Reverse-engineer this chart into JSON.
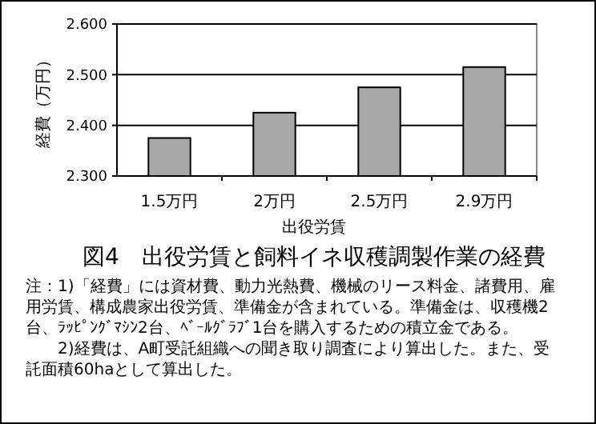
{
  "chart_data": {
    "type": "bar",
    "title": "図4　出役労賃と飼料イネ収穫調製作業の経費",
    "xlabel": "出役労賃",
    "ylabel": "経費（万円）",
    "categories": [
      "1.5万円",
      "2万円",
      "2.5万円",
      "2.9万円"
    ],
    "values": [
      2.375,
      2.425,
      2.475,
      2.515
    ],
    "color": "#a8a8a8",
    "ylim": [
      2.3,
      2.6
    ],
    "yticks": [
      {
        "value": 2.3,
        "label": "2.300"
      },
      {
        "value": 2.4,
        "label": "2.400"
      },
      {
        "value": 2.5,
        "label": "2.500"
      },
      {
        "value": 2.6,
        "label": "2.600"
      }
    ],
    "grid": "y",
    "annotations": [
      "注：1)「経費」には資材費、動力光熱費、機械のリース料金、諸費用、雇用労賃、構成農家出役労賃、準備金が含まれている。準備金は、収穫機2台、ﾗｯﾋﾟﾝｸﾞﾏｼﾝ2台、ﾍﾞｰﾙｸﾞﾗﾌﾞ1台を購入するための積立金である。",
      "2)経費は、A町受託組織への聞き取り調査により算出した。また、受託面積60haとして算出した。"
    ]
  }
}
